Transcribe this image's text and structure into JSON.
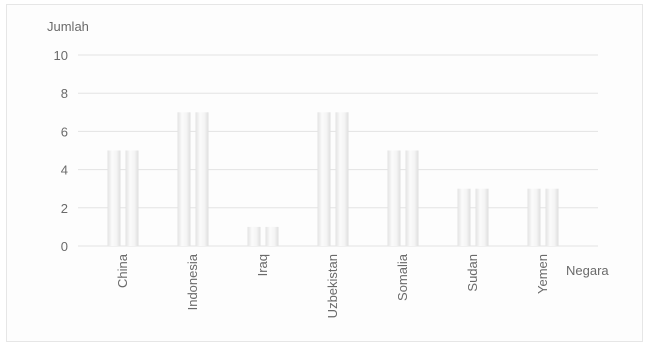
{
  "chart_data": {
    "type": "bar",
    "title": "",
    "ylabel": "Jumlah",
    "xlabel": "Negara",
    "ylim": [
      0,
      10
    ],
    "yticks": [
      0,
      2,
      4,
      6,
      8,
      10
    ],
    "grid": true,
    "categories": [
      "China",
      "Indonesia",
      "Iraq",
      "Uzbekistan",
      "Somalia",
      "Sudan",
      "Yemen"
    ],
    "series": [
      {
        "values": [
          5,
          7,
          1,
          7,
          5,
          3,
          3
        ]
      },
      {
        "values": [
          5,
          7,
          1,
          7,
          5,
          3,
          3
        ]
      }
    ],
    "colors": {
      "bar_fill_light": "#fbfbfb",
      "bar_fill_mid": "#e4e4e4",
      "grid": "#e3e3e3",
      "text": "#6a6a6a"
    }
  }
}
